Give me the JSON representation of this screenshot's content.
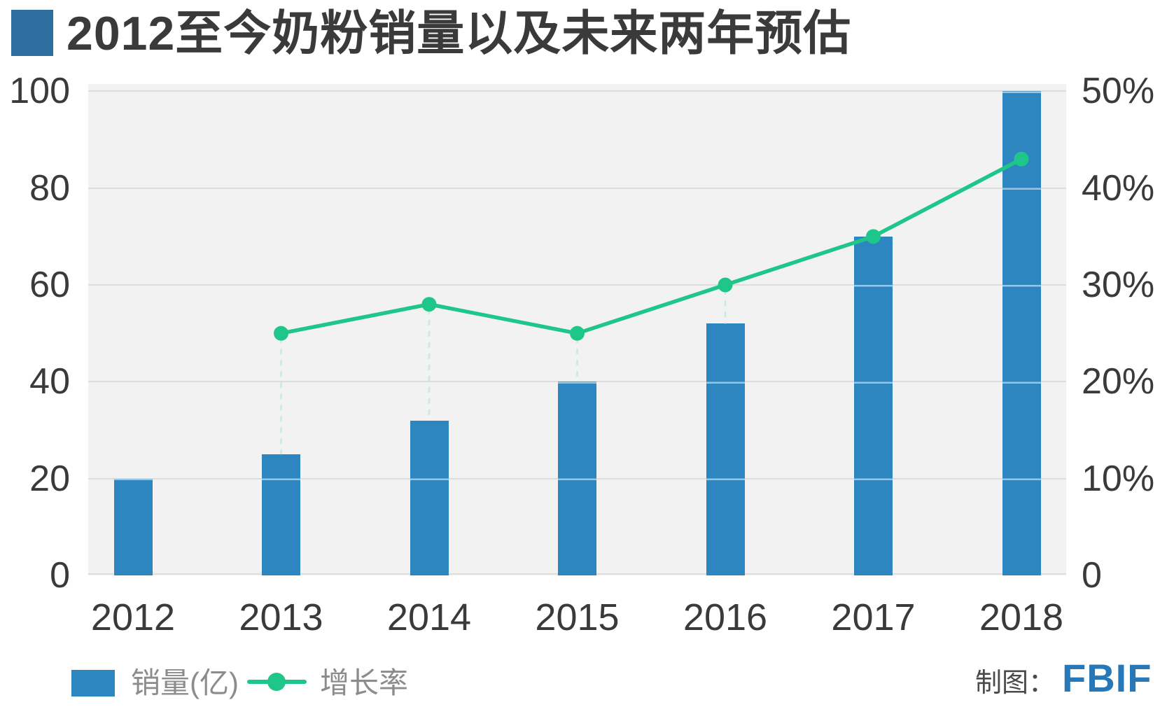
{
  "title": {
    "text": "2012至今奶粉销量以及未来两年预估"
  },
  "chart_data": {
    "type": "bar",
    "subtype": "combo bar+line with dual y-axes",
    "title": "2012至今奶粉销量以及未来两年预估",
    "categories": [
      "2012",
      "2013",
      "2014",
      "2015",
      "2016",
      "2017",
      "2018"
    ],
    "series": [
      {
        "name": "销量(亿)",
        "type": "bar",
        "y_axis": "left",
        "values": [
          20,
          25,
          32,
          40,
          52,
          70,
          100
        ]
      },
      {
        "name": "增长率",
        "type": "line",
        "y_axis": "right",
        "unit": "%",
        "values": [
          null,
          25,
          28,
          25,
          30,
          35,
          43
        ]
      }
    ],
    "left_axis": {
      "ticks": [
        0,
        20,
        40,
        60,
        80,
        100
      ],
      "range": [
        0,
        101.5
      ]
    },
    "right_axis": {
      "ticks": [
        {
          "label": "0",
          "value": 0
        },
        {
          "label": "10%",
          "value": 10
        },
        {
          "label": "20%",
          "value": 20
        },
        {
          "label": "30%",
          "value": 30
        },
        {
          "label": "40%",
          "value": 40
        },
        {
          "label": "50%",
          "value": 50
        }
      ],
      "range": [
        0,
        50.75
      ]
    },
    "grid": true,
    "legend_position": "bottom-left",
    "annotation": "dashed drop lines connect 2013-2016 line points to their bar tops"
  },
  "legend": {
    "bar_label": "销量(亿)",
    "line_label": "增长率"
  },
  "credit": {
    "prefix": "制图：",
    "brand": "FBIF"
  },
  "colors": {
    "bar": "#2E86C1",
    "bar_gridline_overlay": "#98C5E2",
    "line": "#1FC689",
    "drop_dash": "#C9E9DB",
    "plot_bg": "#F2F2F3",
    "gridline": "#DDDDDD",
    "title_square": "#2D6E9E",
    "brand": "#2878B8",
    "text_dark": "#3A3A3A",
    "text_gray": "#8C8C8C",
    "credit_text": "#4A4A4A"
  }
}
